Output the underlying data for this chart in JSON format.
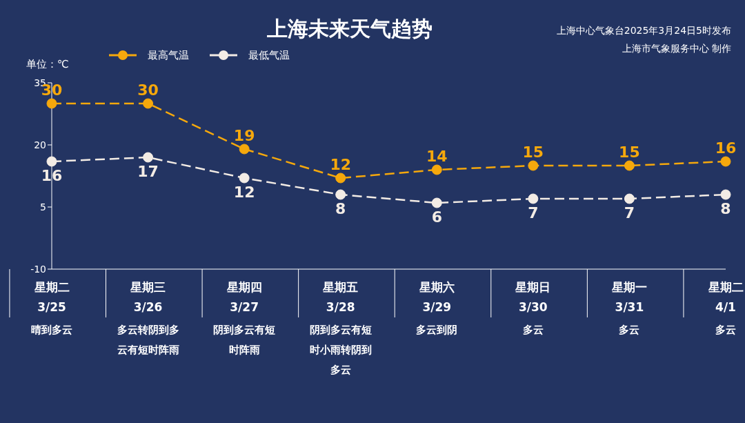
{
  "chart_data": {
    "type": "line",
    "title": "上海未来天气趋势",
    "ylabel": "单位：℃",
    "annotations": [
      "上海中心气象台2025年3月24日5时发布",
      "上海市气象服务中心 制作"
    ],
    "categories": [
      "星期二\n3/25\n晴到多云",
      "星期三\n3/26\n多云转阴到多云有短时阵雨",
      "星期四\n3/27\n阴到多云有短时阵雨",
      "星期五\n3/28\n阴到多云有短时小雨转阴到多云",
      "星期六\n3/29\n多云到阴",
      "星期日\n3/30\n多云",
      "星期一\n3/31\n多云",
      "星期二\n4/1\n多云"
    ],
    "series": [
      {
        "name": "最高气温",
        "color": "#f5a80c",
        "values": [
          30,
          30,
          19,
          12,
          14,
          15,
          15,
          16
        ]
      },
      {
        "name": "最低气温",
        "color": "#f3ece5",
        "values": [
          16,
          17,
          12,
          8,
          6,
          7,
          7,
          8
        ]
      }
    ],
    "ylim": [
      -10,
      35
    ],
    "yticks": [
      -10,
      5,
      20,
      35
    ],
    "legend": "top left",
    "marker": "circle",
    "line_style": "dashed",
    "data_labels": true
  }
}
